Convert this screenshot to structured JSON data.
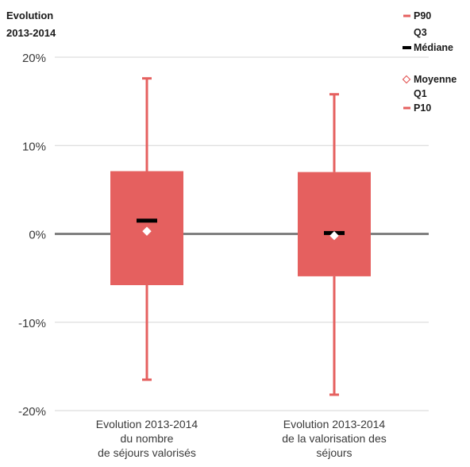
{
  "chart_data": {
    "type": "boxplot",
    "y_title_lines": [
      "Evolution",
      "2013-2014"
    ],
    "ylim": [
      -0.2,
      0.2
    ],
    "y_ticks": [
      {
        "value": 0.2,
        "label": "20%"
      },
      {
        "value": 0.1,
        "label": "10%"
      },
      {
        "value": 0.0,
        "label": "0%"
      },
      {
        "value": -0.1,
        "label": "-10%"
      },
      {
        "value": -0.2,
        "label": "-20%"
      }
    ],
    "grid": true,
    "legend_position": "top-right",
    "legend": [
      {
        "key": "p90",
        "label": "P90",
        "symbol": "line"
      },
      {
        "key": "q3",
        "label": "Q3",
        "symbol": "none"
      },
      {
        "key": "median",
        "label": "Médiane",
        "symbol": "median"
      },
      {
        "key": "mean",
        "label": "Moyenne",
        "symbol": "diamond"
      },
      {
        "key": "q1",
        "label": "Q1",
        "symbol": "none"
      },
      {
        "key": "p10",
        "label": "P10",
        "symbol": "line"
      }
    ],
    "colors": {
      "box": "#e5605f",
      "whisker": "#e5605f",
      "median": "#000000",
      "mean_fill": "#ffffff",
      "mean_stroke": "#e5605f",
      "zero_line": "#808080",
      "grid": "#d6d6d6"
    },
    "boxes": [
      {
        "label_lines": [
          "Evolution 2013-2014",
          "du nombre",
          "de séjours valorisés"
        ],
        "p10": -0.165,
        "q1": -0.058,
        "median": 0.015,
        "mean": 0.003,
        "q3": 0.071,
        "p90": 0.176
      },
      {
        "label_lines": [
          "Evolution 2013-2014",
          "de la valorisation des",
          "séjours"
        ],
        "p10": -0.182,
        "q1": -0.048,
        "median": 0.001,
        "mean": -0.002,
        "q3": 0.07,
        "p90": 0.158
      }
    ]
  }
}
